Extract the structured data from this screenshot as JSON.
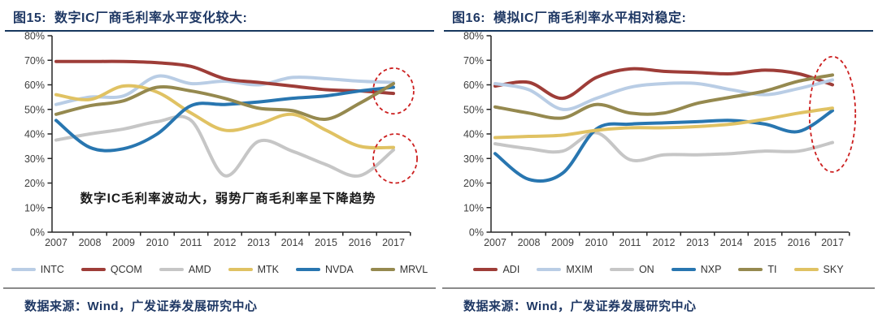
{
  "source_note": "数据来源：Wind，广发证券发展研究中心",
  "colors": {
    "title_text": "#1F3864",
    "title_underline": "#17375E",
    "axis": "#262626",
    "tick_label": "#404040",
    "annotation_text": "#1a1a1a",
    "ellipse": "#CC1F1F",
    "source_divider": "#8a8a8a"
  },
  "chart_data": [
    {
      "type": "line",
      "title": "图15:  数字IC厂商毛利率水平变化较大:",
      "x": [
        2007,
        2008,
        2009,
        2010,
        2011,
        2012,
        2013,
        2014,
        2015,
        2016,
        2017
      ],
      "ylim": [
        0,
        80
      ],
      "ytick_step": 10,
      "ytick_labels": [
        "0%",
        "10%",
        "20%",
        "30%",
        "40%",
        "50%",
        "60%",
        "70%",
        "80%"
      ],
      "legend_position": "bottom",
      "grid": false,
      "series": [
        {
          "name": "INTC",
          "color": "#B9CDE5",
          "values": [
            52,
            55,
            55.5,
            63.5,
            60.5,
            61.5,
            60,
            63,
            62.5,
            61.5,
            61
          ]
        },
        {
          "name": "QCOM",
          "color": "#9E3D38",
          "values": [
            69.5,
            69.5,
            69.5,
            69,
            67.5,
            62.5,
            61,
            59.5,
            58,
            57.5,
            56.5
          ]
        },
        {
          "name": "AMD",
          "color": "#C6C6C6",
          "values": [
            37.5,
            40,
            42,
            45,
            45.5,
            23,
            37,
            33,
            27.5,
            23,
            33.5
          ]
        },
        {
          "name": "MTK",
          "color": "#E0C263",
          "values": [
            56,
            54,
            59.5,
            57,
            48.5,
            41.5,
            44,
            48,
            41.5,
            35,
            34.5
          ]
        },
        {
          "name": "NVDA",
          "color": "#2876B0",
          "values": [
            45.5,
            34.5,
            34,
            40,
            51.5,
            52,
            53,
            54.5,
            55.5,
            57.5,
            59
          ]
        },
        {
          "name": "MRVL",
          "color": "#95894F",
          "values": [
            48,
            51.5,
            53.5,
            59,
            57.5,
            54.5,
            50.5,
            49.5,
            46,
            52.5,
            60.5
          ]
        }
      ],
      "annotation": {
        "text": "数字IC毛利率波动大，弱势厂商毛利率呈下降趋势",
        "x_year": 2012.1,
        "y_pct": 12
      },
      "ellipses": [
        {
          "x_year": 2017,
          "y_pct": 57.5,
          "rx_years": 0.6,
          "ry_pct": 9.3
        },
        {
          "x_year": 2017.05,
          "y_pct": 30,
          "rx_years": 0.65,
          "ry_pct": 10
        }
      ]
    },
    {
      "type": "line",
      "title": "图16:  模拟IC厂商毛利率水平相对稳定:",
      "x": [
        2007,
        2008,
        2009,
        2010,
        2011,
        2012,
        2013,
        2014,
        2015,
        2016,
        2017
      ],
      "ylim": [
        0,
        80
      ],
      "ytick_step": 10,
      "ytick_labels": [
        "0%",
        "10%",
        "20%",
        "30%",
        "40%",
        "50%",
        "60%",
        "70%",
        "80%"
      ],
      "legend_position": "bottom",
      "grid": false,
      "series": [
        {
          "name": "ADI",
          "color": "#9E3D38",
          "values": [
            59.5,
            61,
            54.5,
            63,
            66.5,
            65.5,
            65,
            64.5,
            66,
            64.5,
            60
          ]
        },
        {
          "name": "MXIM",
          "color": "#B9CDE5",
          "values": [
            60.5,
            58,
            50,
            54.5,
            59,
            60.5,
            60.5,
            58,
            56,
            58.5,
            62
          ]
        },
        {
          "name": "ON",
          "color": "#C6C6C6",
          "values": [
            36,
            34,
            33,
            40.5,
            29.5,
            31.5,
            31.5,
            32,
            33,
            33,
            36.5
          ]
        },
        {
          "name": "NXP",
          "color": "#2876B0",
          "values": [
            32,
            21.5,
            24,
            42,
            44,
            44.5,
            45,
            45.5,
            44,
            41,
            49.5
          ]
        },
        {
          "name": "TI",
          "color": "#95894F",
          "values": [
            51,
            48.5,
            46.5,
            52,
            48.5,
            48.5,
            52.5,
            55,
            57.5,
            61.5,
            64
          ]
        },
        {
          "name": "SKY",
          "color": "#E0C263",
          "values": [
            38.5,
            39,
            39.5,
            41.5,
            42.5,
            42.5,
            43,
            44,
            46,
            48.5,
            50.5
          ]
        }
      ],
      "annotation": null,
      "ellipses": [
        {
          "x_year": 2017,
          "y_pct": 48,
          "rx_years": 0.68,
          "ry_pct": 23.5
        }
      ]
    }
  ]
}
